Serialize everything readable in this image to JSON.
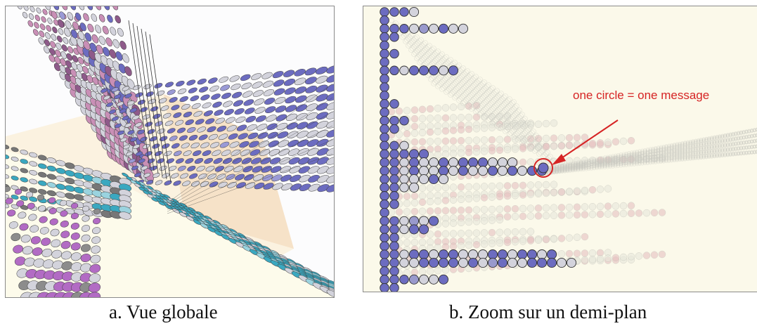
{
  "figure": {
    "panel_a": {
      "caption": "a. Vue globale"
    },
    "panel_b": {
      "caption": "b. Zoom sur un demi-plan",
      "annotation": "one circle = one message"
    }
  },
  "colors": {
    "background_light": "#fbf9ea",
    "circle_blue": "#6c6cc0",
    "circle_grey": "#d3d3dc",
    "circle_pink": "#c98fb6",
    "circle_teal": "#3aa8c0",
    "annotation_red": "#d62424"
  }
}
